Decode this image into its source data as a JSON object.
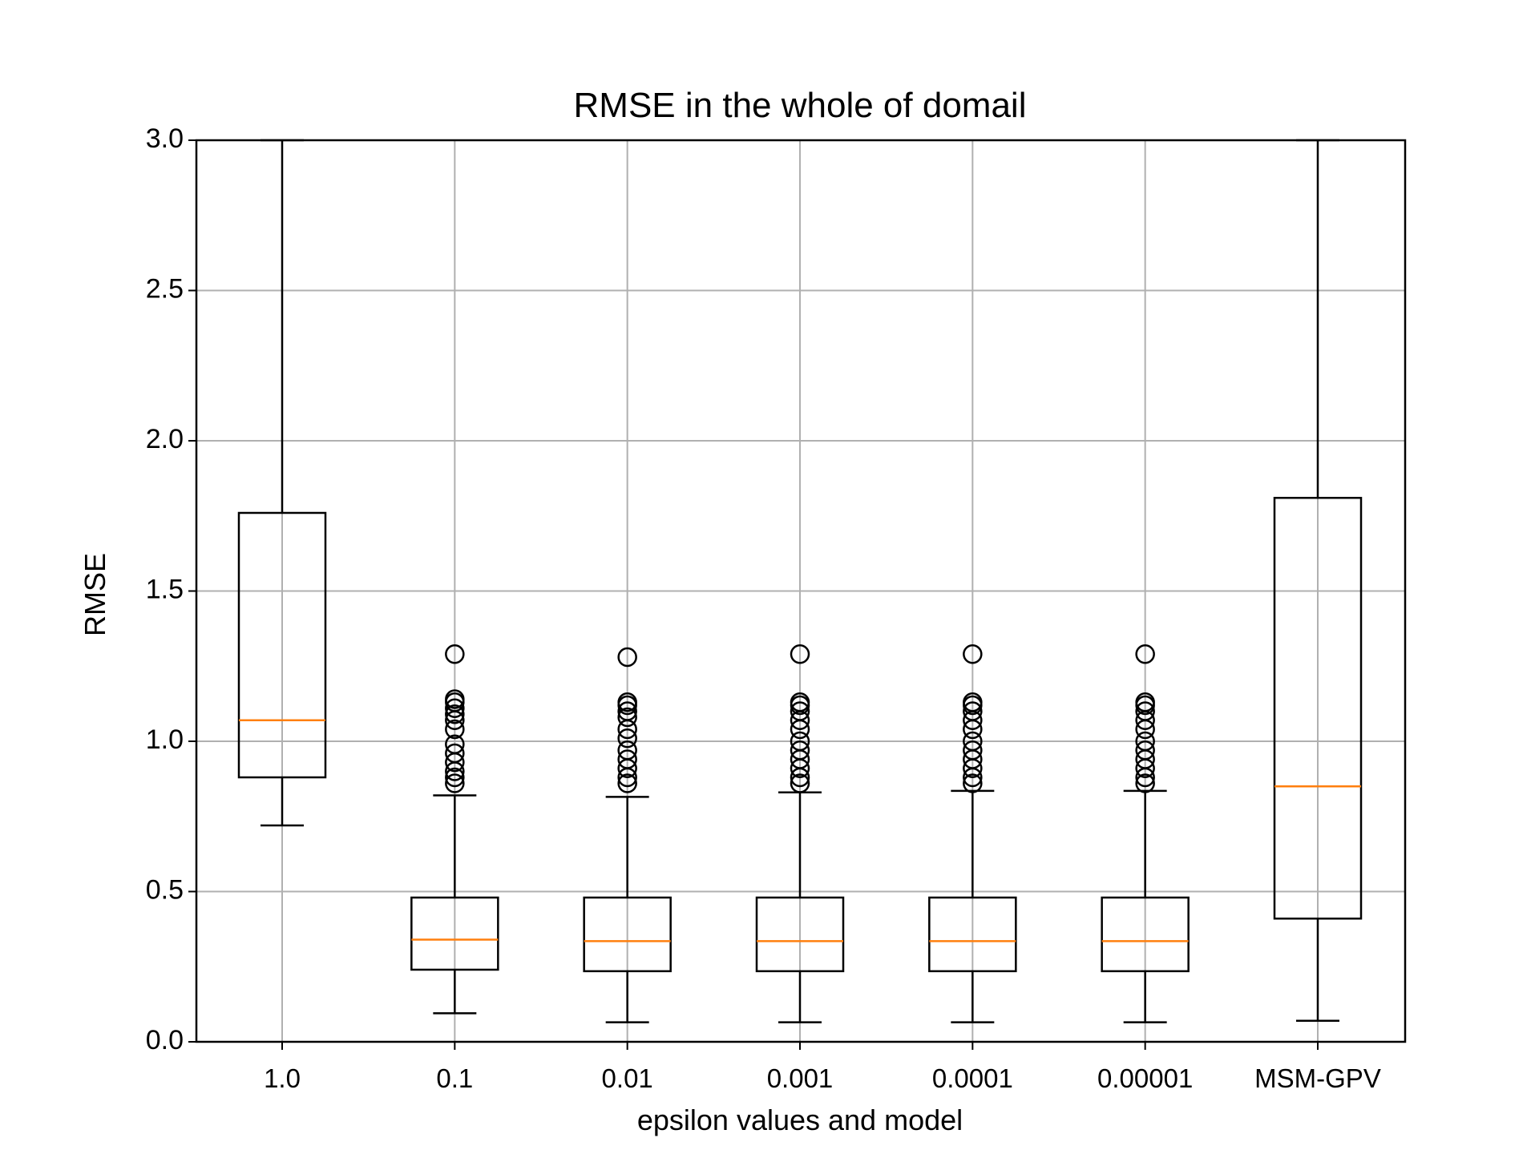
{
  "chart_data": {
    "type": "boxplot",
    "title": "RMSE in the whole of domail",
    "xlabel": "epsilon values and model",
    "ylabel": "RMSE",
    "ylim": [
      0.0,
      3.0
    ],
    "yticks": [
      "0.0",
      "0.5",
      "1.0",
      "1.5",
      "2.0",
      "2.5",
      "3.0"
    ],
    "grid": true,
    "categories": [
      "1.0",
      "0.1",
      "0.01",
      "0.001",
      "0.0001",
      "0.00001",
      "MSM-GPV"
    ],
    "boxes": [
      {
        "category": "1.0",
        "whisker_low": 0.72,
        "q1": 0.88,
        "median": 1.07,
        "q3": 1.76,
        "whisker_high": 3.0,
        "outliers": []
      },
      {
        "category": "0.1",
        "whisker_low": 0.095,
        "q1": 0.24,
        "median": 0.34,
        "q3": 0.48,
        "whisker_high": 0.82,
        "outliers": [
          0.86,
          0.88,
          0.9,
          0.93,
          0.96,
          0.99,
          1.04,
          1.07,
          1.09,
          1.11,
          1.13,
          1.14,
          1.29
        ]
      },
      {
        "category": "0.01",
        "whisker_low": 0.065,
        "q1": 0.235,
        "median": 0.335,
        "q3": 0.48,
        "whisker_high": 0.815,
        "outliers": [
          0.86,
          0.88,
          0.91,
          0.94,
          0.97,
          1.01,
          1.04,
          1.08,
          1.1,
          1.12,
          1.13,
          1.28
        ]
      },
      {
        "category": "0.001",
        "whisker_low": 0.065,
        "q1": 0.235,
        "median": 0.335,
        "q3": 0.48,
        "whisker_high": 0.83,
        "outliers": [
          0.86,
          0.88,
          0.91,
          0.94,
          0.97,
          1.0,
          1.04,
          1.07,
          1.1,
          1.12,
          1.13,
          1.29
        ]
      },
      {
        "category": "0.0001",
        "whisker_low": 0.065,
        "q1": 0.235,
        "median": 0.335,
        "q3": 0.48,
        "whisker_high": 0.835,
        "outliers": [
          0.86,
          0.88,
          0.91,
          0.94,
          0.97,
          1.0,
          1.04,
          1.07,
          1.1,
          1.12,
          1.13,
          1.29
        ]
      },
      {
        "category": "0.00001",
        "whisker_low": 0.065,
        "q1": 0.235,
        "median": 0.335,
        "q3": 0.48,
        "whisker_high": 0.835,
        "outliers": [
          0.86,
          0.88,
          0.91,
          0.94,
          0.97,
          1.0,
          1.04,
          1.07,
          1.1,
          1.12,
          1.13,
          1.29
        ]
      },
      {
        "category": "MSM-GPV",
        "whisker_low": 0.07,
        "q1": 0.41,
        "median": 0.85,
        "q3": 1.81,
        "whisker_high": 3.0,
        "outliers": []
      }
    ],
    "colors": {
      "box": "#000000",
      "median": "#ff7f0e",
      "grid": "#b0b0b0",
      "outlier": "#000000"
    }
  }
}
